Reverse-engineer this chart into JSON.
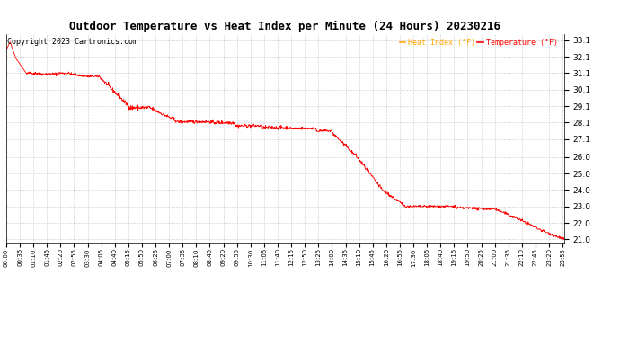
{
  "title": "Outdoor Temperature vs Heat Index per Minute (24 Hours) 20230216",
  "title_fontsize": 9,
  "copyright_text": "Copyright 2023 Cartronics.com",
  "copyright_fontsize": 6,
  "legend_heat_index": "Heat Index (°F)",
  "legend_temperature": "Temperature (°F)",
  "legend_heat_color": "orange",
  "legend_temp_color": "red",
  "line_color": "red",
  "background_color": "white",
  "grid_color": "#bbbbbb",
  "ylim_min": 20.8,
  "ylim_max": 33.5,
  "yticks": [
    21.0,
    22.0,
    23.0,
    24.0,
    25.0,
    26.0,
    27.1,
    28.1,
    29.1,
    30.1,
    31.1,
    32.1,
    33.1
  ],
  "ylabel_fontsize": 6.5,
  "xlabel_fontsize": 5.0,
  "num_minutes": 1440,
  "x_tick_interval": 35,
  "figwidth": 6.9,
  "figheight": 3.75,
  "dpi": 100
}
